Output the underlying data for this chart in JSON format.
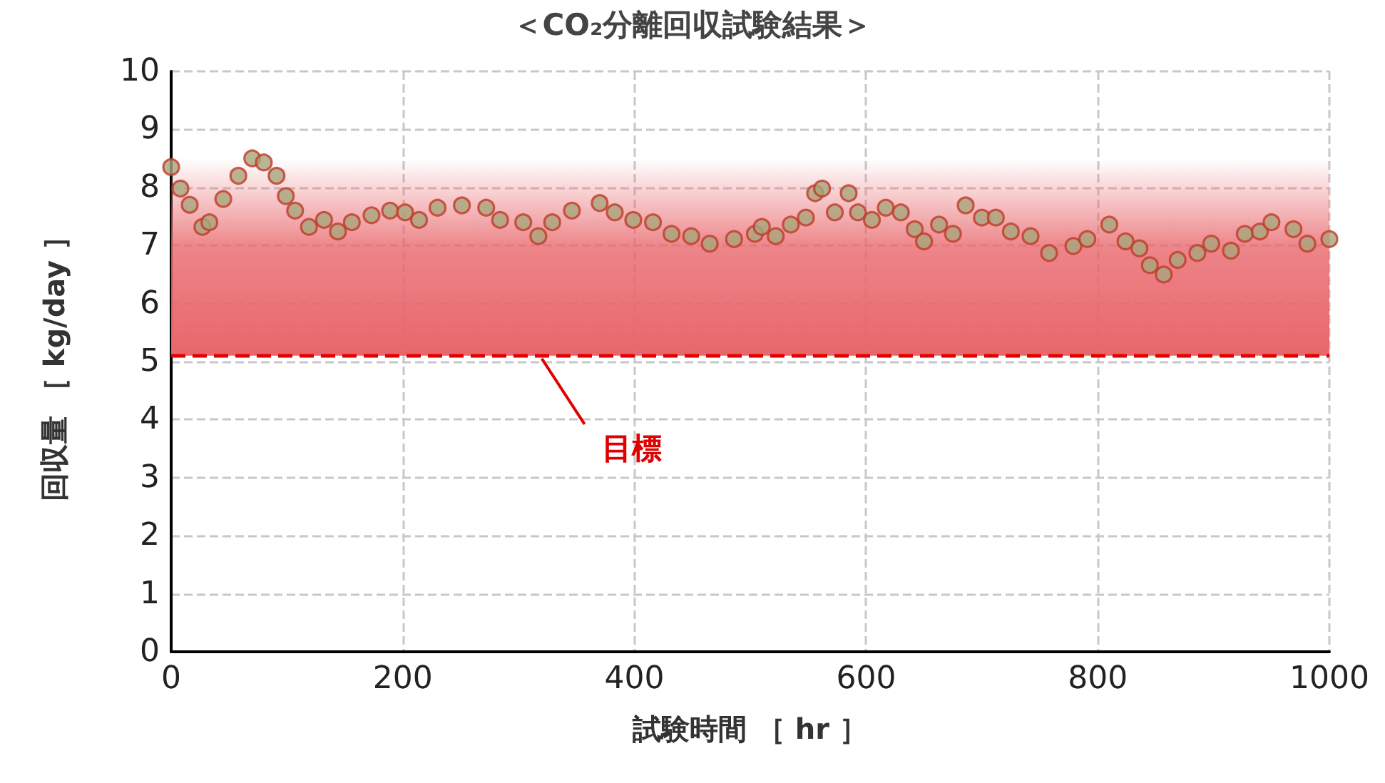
{
  "chart_data": {
    "type": "scatter",
    "title": "＜CO₂分離回収試験結果＞",
    "xlabel": "試験時間 ［ hr ］",
    "ylabel": "回収量 ［ kg/day ］",
    "series": [
      {
        "color": "#a9a57c",
        "x": [
          0,
          8,
          16,
          27,
          33,
          45,
          58,
          70,
          80,
          91,
          99,
          107,
          119,
          132,
          144,
          156,
          173,
          189,
          202,
          214,
          230,
          251,
          272,
          284,
          304,
          317,
          329,
          346,
          370,
          383,
          399,
          416,
          432,
          449,
          465,
          486,
          504,
          510,
          522,
          535,
          548,
          556,
          562,
          573,
          585,
          593,
          605,
          617,
          630,
          642,
          650,
          663,
          675,
          686,
          700,
          712,
          725,
          742,
          758,
          779,
          791,
          810,
          824,
          836,
          845,
          857,
          869,
          886,
          898,
          915,
          927,
          940,
          950,
          969,
          981,
          1000
        ],
        "values": [
          8.35,
          7.98,
          7.7,
          7.32,
          7.4,
          7.8,
          8.2,
          8.5,
          8.43,
          8.2,
          7.85,
          7.6,
          7.32,
          7.44,
          7.24,
          7.4,
          7.52,
          7.6,
          7.57,
          7.44,
          7.65,
          7.69,
          7.65,
          7.44,
          7.4,
          7.16,
          7.4,
          7.6,
          7.73,
          7.57,
          7.44,
          7.4,
          7.2,
          7.16,
          7.03,
          7.11,
          7.2,
          7.32,
          7.16,
          7.36,
          7.48,
          7.9,
          7.98,
          7.57,
          7.9,
          7.57,
          7.44,
          7.65,
          7.57,
          7.28,
          7.07,
          7.36,
          7.2,
          7.69,
          7.48,
          7.48,
          7.24,
          7.16,
          6.87,
          6.99,
          7.11,
          7.36,
          7.07,
          6.95,
          6.66,
          6.5,
          6.75,
          6.87,
          7.03,
          6.91,
          7.2,
          7.24,
          7.4,
          7.28,
          7.03,
          7.11
        ]
      }
    ],
    "xlim": [
      0,
      1000
    ],
    "xticks": [
      0,
      200,
      400,
      600,
      800,
      1000
    ],
    "ylim": [
      0,
      10
    ],
    "yticks": [
      0,
      1,
      2,
      3,
      4,
      5,
      6,
      7,
      8,
      9,
      10
    ],
    "grid": true,
    "marker": "circle",
    "ref_lines": [
      {
        "axis": "y",
        "value": 5.1,
        "label": "目標",
        "color": "#e00000",
        "line_style": "dashed"
      }
    ],
    "bands": [
      {
        "axis": "y",
        "from": 5.1,
        "to": 8.5,
        "color": "#e8666b"
      }
    ]
  }
}
